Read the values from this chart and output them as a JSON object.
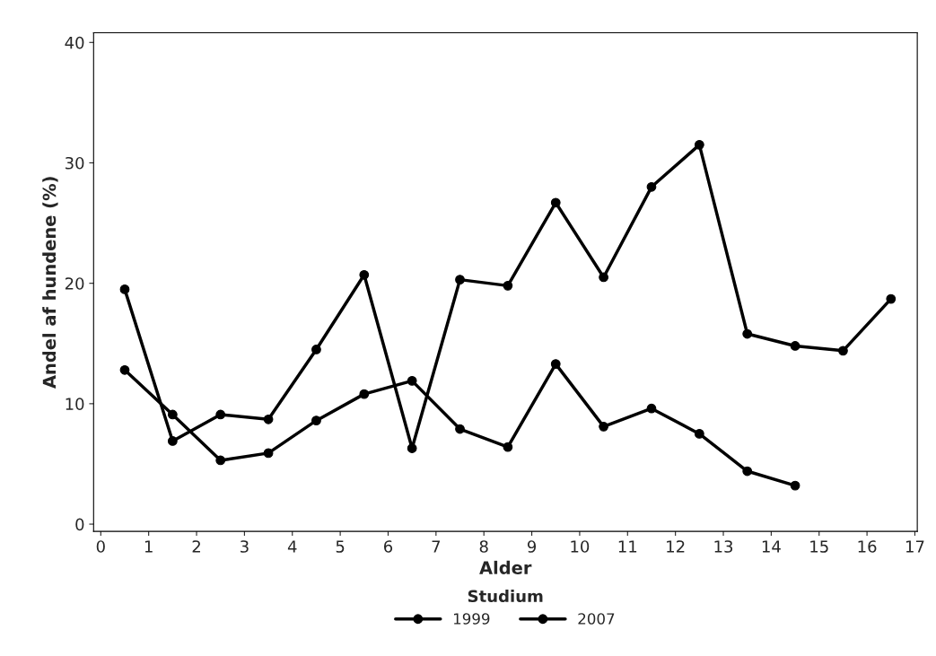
{
  "chart_data": {
    "type": "line",
    "xlabel": "Alder",
    "ylabel": "Andel af hundene (%)",
    "legend_title": "Studium",
    "legend": "bottom",
    "marker": "circle",
    "line_style": "solid",
    "grid": false,
    "xlim": [
      -0.15,
      17.05
    ],
    "xticks": [
      0,
      1,
      2,
      3,
      4,
      5,
      6,
      7,
      8,
      9,
      10,
      11,
      12,
      13,
      14,
      15,
      16,
      17
    ],
    "ylim": [
      -0.6,
      40.8
    ],
    "yticks": [
      0,
      10,
      20,
      30,
      40
    ],
    "series": [
      {
        "name": "1999",
        "color": "#000000",
        "x": [
          0.5,
          1.5,
          2.5,
          3.5,
          4.5,
          5.5,
          6.5,
          7.5,
          8.5,
          9.5,
          10.5,
          11.5,
          12.5,
          13.5,
          14.5
        ],
        "values": [
          12.8,
          9.1,
          5.3,
          5.9,
          8.6,
          10.8,
          11.9,
          7.9,
          6.4,
          13.3,
          8.1,
          9.6,
          7.5,
          4.4,
          3.2
        ]
      },
      {
        "name": "2007",
        "color": "#000000",
        "x": [
          0.5,
          1.5,
          2.5,
          3.5,
          4.5,
          5.5,
          6.5,
          7.5,
          8.5,
          9.5,
          10.5,
          11.5,
          12.5,
          13.5,
          14.5,
          15.5,
          16.5
        ],
        "values": [
          19.5,
          6.9,
          9.1,
          8.7,
          14.5,
          20.7,
          6.3,
          20.3,
          19.8,
          26.7,
          20.5,
          28.0,
          31.5,
          15.8,
          14.8,
          14.4,
          18.7
        ]
      }
    ]
  }
}
